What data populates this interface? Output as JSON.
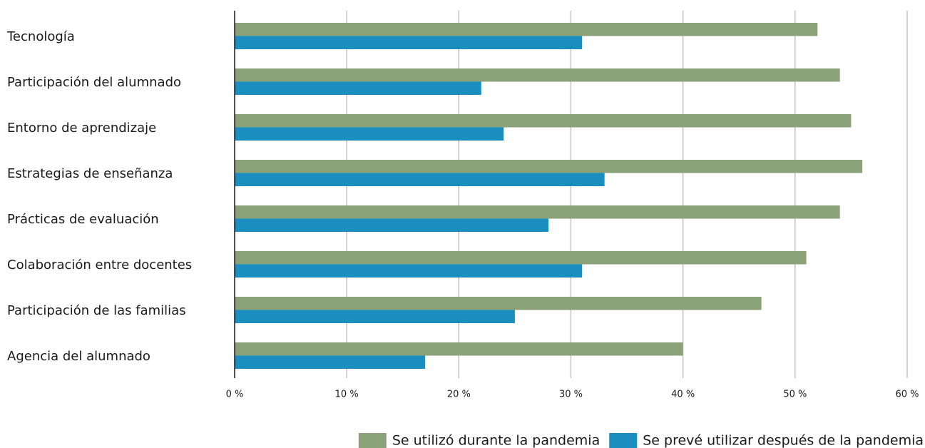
{
  "chart_data": {
    "type": "hbar",
    "categories": [
      "Tecnología",
      "Participación del alumnado",
      "Entorno de aprendizaje",
      "Estrategias de enseñanza",
      "Prácticas de evaluación",
      "Colaboración entre docentes",
      "Participación de las familias",
      "Agencia del alumnado"
    ],
    "series": [
      {
        "name": "Se utilizó durante la pandemia",
        "color": "#8ba278",
        "values": [
          52,
          54,
          55,
          56,
          54,
          51,
          47,
          40
        ]
      },
      {
        "name": "Se prevé utilizar después de la pandemia",
        "color": "#1a8fbf",
        "values": [
          31,
          22,
          24,
          33,
          28,
          31,
          25,
          17
        ]
      }
    ],
    "xlim": [
      0,
      60
    ],
    "xticks": [
      {
        "value": 0,
        "label": "0 %"
      },
      {
        "value": 10,
        "label": "10 %"
      },
      {
        "value": 20,
        "label": "20 %"
      },
      {
        "value": 30,
        "label": "30 %"
      },
      {
        "value": 40,
        "label": "40 %"
      },
      {
        "value": 50,
        "label": "50 %"
      },
      {
        "value": 60,
        "label": "60 %"
      }
    ],
    "grid": true
  }
}
